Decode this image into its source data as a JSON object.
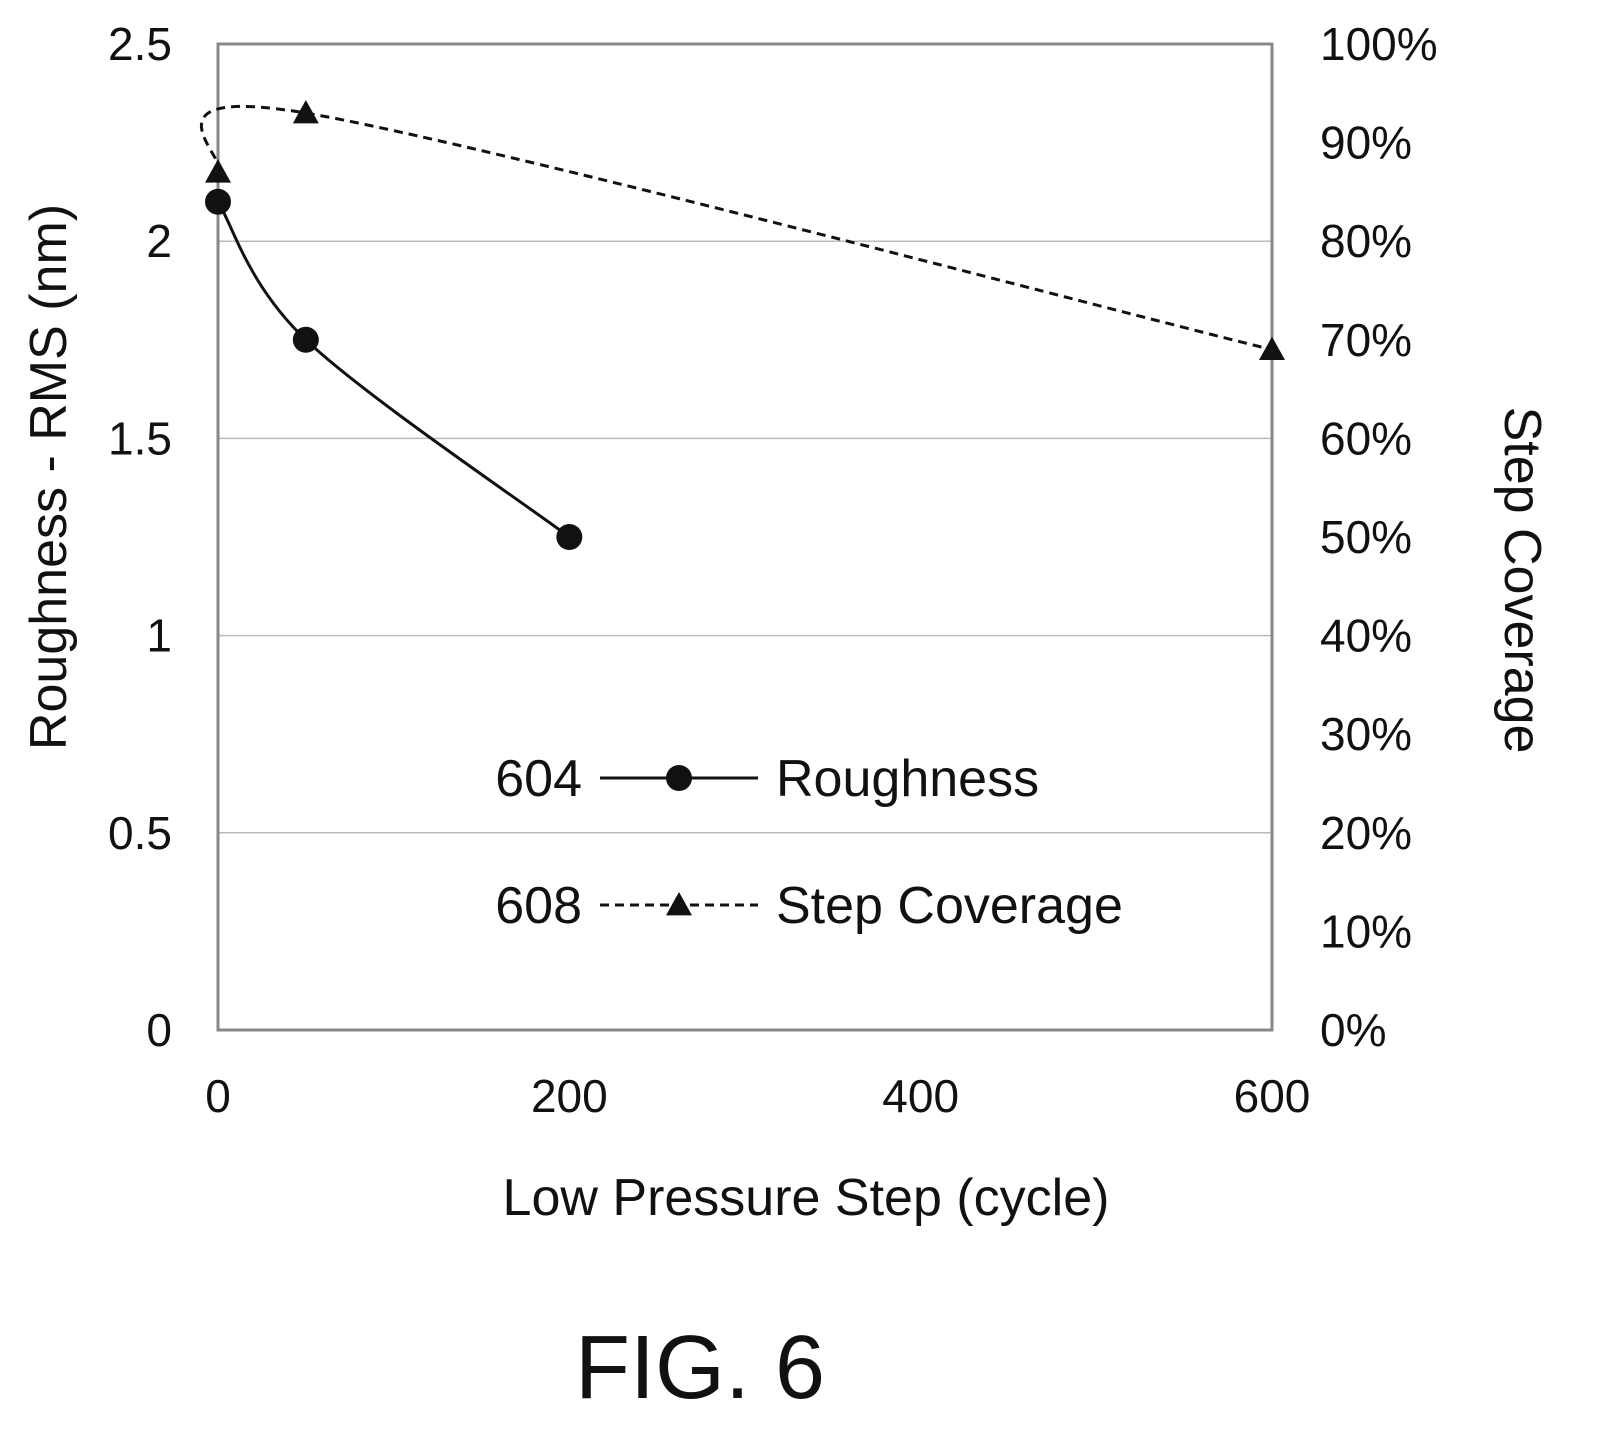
{
  "figure_label": "FIG. 6",
  "chart_data": {
    "type": "line",
    "xlabel": "Low Pressure Step (cycle)",
    "ylabel": "Roughness - RMS (nm)",
    "y2label": "Step Coverage",
    "xlim": [
      0,
      600
    ],
    "ylim": [
      0,
      2.5
    ],
    "y2lim": [
      0,
      100
    ],
    "x_ticks": [
      "0",
      "200",
      "400",
      "600"
    ],
    "x_tick_values": [
      0,
      200,
      400,
      600
    ],
    "y_ticks": [
      "0",
      "0.5",
      "1",
      "1.5",
      "2",
      "2.5"
    ],
    "y_tick_values": [
      0,
      0.5,
      1,
      1.5,
      2,
      2.5
    ],
    "y2_ticks": [
      "0%",
      "10%",
      "20%",
      "30%",
      "40%",
      "50%",
      "60%",
      "70%",
      "80%",
      "90%",
      "100%"
    ],
    "y2_tick_values": [
      0,
      10,
      20,
      30,
      40,
      50,
      60,
      70,
      80,
      90,
      100
    ],
    "grid": true,
    "legend_position": "lower-center",
    "series": [
      {
        "name": "Roughness",
        "ref": "604",
        "axis": "left",
        "marker": "circle",
        "style": "solid",
        "x": [
          0,
          50,
          200
        ],
        "y": [
          2.1,
          1.75,
          1.25
        ]
      },
      {
        "name": "Step Coverage",
        "ref": "608",
        "axis": "right",
        "marker": "triangle",
        "style": "dashed",
        "x": [
          0,
          50,
          600
        ],
        "y": [
          87,
          93,
          69
        ]
      }
    ]
  }
}
